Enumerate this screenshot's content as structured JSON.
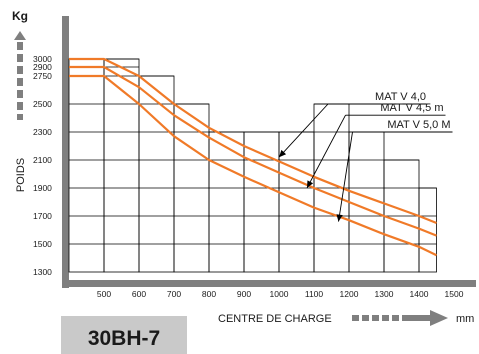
{
  "chart_data": {
    "type": "line",
    "unit_top": "Kg",
    "ylabel": "POIDS",
    "xlabel": "CENTRE DE CHARGE",
    "xunit": "mm",
    "model": "30BH-7",
    "x_ticks": [
      500,
      600,
      700,
      800,
      900,
      1000,
      1100,
      1200,
      1300,
      1400,
      1500
    ],
    "y_ticks": [
      1300,
      1500,
      1700,
      1900,
      2100,
      2300,
      2500,
      2750,
      2900,
      3000
    ],
    "xlim": [
      400,
      1500
    ],
    "ylim": [
      1300,
      3000
    ],
    "capacity_steps": [
      {
        "x_end": 500,
        "y": 3000
      },
      {
        "x_end": 600,
        "y": 3000
      },
      {
        "x_end": 700,
        "y": 2750
      },
      {
        "x_end": 800,
        "y": 2500
      },
      {
        "x_end": 900,
        "y": 2300
      },
      {
        "x_end": 1000,
        "y": 2300
      },
      {
        "x_end": 1100,
        "y": 2300
      },
      {
        "x_end": 1200,
        "y": 2500
      },
      {
        "x_end": 1300,
        "y": 2300
      },
      {
        "x_end": 1400,
        "y": 2100
      },
      {
        "x_end": 1450,
        "y": 1900
      }
    ],
    "series": [
      {
        "name": "MAT V 4,0",
        "x": [
          400,
          500,
          600,
          700,
          800,
          900,
          1000,
          1100,
          1200,
          1300,
          1400,
          1450
        ],
        "y": [
          3000,
          3000,
          2750,
          2500,
          2330,
          2200,
          2090,
          1980,
          1880,
          1790,
          1700,
          1650
        ]
      },
      {
        "name": "MAT V 4,5 m",
        "x": [
          400,
          500,
          600,
          700,
          800,
          900,
          1000,
          1100,
          1200,
          1300,
          1400,
          1450
        ],
        "y": [
          2900,
          2900,
          2650,
          2420,
          2260,
          2120,
          2010,
          1900,
          1800,
          1700,
          1610,
          1560
        ]
      },
      {
        "name": "MAT V 5,0 M",
        "x": [
          400,
          500,
          600,
          700,
          800,
          900,
          1000,
          1100,
          1200,
          1300,
          1400,
          1450
        ],
        "y": [
          2750,
          2750,
          2500,
          2270,
          2100,
          1980,
          1870,
          1760,
          1670,
          1570,
          1480,
          1420
        ]
      }
    ],
    "annotations": [
      {
        "series": 0,
        "label_x": 1140,
        "label_y": 2500,
        "anchor_x": 1000,
        "anchor_y": 2120
      },
      {
        "series": 1,
        "label_x": 1190,
        "label_y": 2420,
        "anchor_x": 1080,
        "anchor_y": 1900
      },
      {
        "series": 2,
        "label_x": 1210,
        "label_y": 2300,
        "anchor_x": 1170,
        "anchor_y": 1660
      }
    ],
    "colors": {
      "line": "#f07a28",
      "frame": "#7f7f7f",
      "grid": "#000000",
      "badge_bg": "#c9c9c9",
      "text": "#1a1a1a"
    }
  }
}
